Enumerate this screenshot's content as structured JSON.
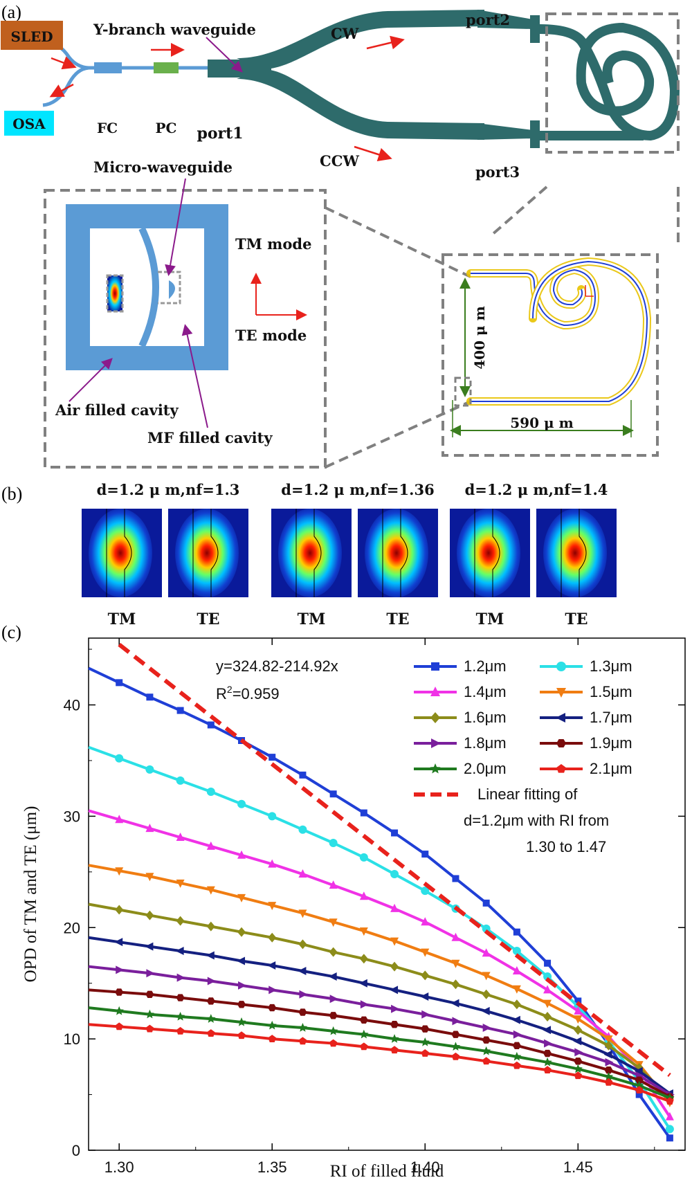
{
  "panel_labels": {
    "a": "(a)",
    "b": "(b)",
    "c": "(c)"
  },
  "schematic": {
    "sled": "SLED",
    "osa": "OSA",
    "fc": "FC",
    "pc": "PC",
    "port1": "port1",
    "port2": "port2",
    "port3": "port3",
    "y_branch": "Y-branch waveguide",
    "cw": "CW",
    "ccw": "CCW",
    "micro_waveguide": "Micro-waveguide",
    "tm_mode": "TM mode",
    "te_mode": "TE mode",
    "air_cavity": "Air filled cavity",
    "mf_cavity": "MF filled cavity",
    "dim_height": "400 μ m",
    "dim_width": "590 μ m",
    "colors": {
      "sled": "#c0601e",
      "osa": "#00e5ff",
      "fiber": "#5b9bd5",
      "fc": "#5b9bd5",
      "pc": "#6ab04c",
      "waveguide": "#2e6b6b",
      "arrow": "#e8221c",
      "annot": "#8b1a8b",
      "dashed": "#808080"
    }
  },
  "modes": {
    "groups": [
      {
        "title": "d=1.2 μ m,nf=1.3",
        "labels": [
          "TM",
          "TE"
        ]
      },
      {
        "title": "d=1.2 μ m,nf=1.36",
        "labels": [
          "TM",
          "TE"
        ]
      },
      {
        "title": "d=1.2 μ m,nf=1.4",
        "labels": [
          "TM",
          "TE"
        ]
      }
    ]
  },
  "chart_data": {
    "type": "line",
    "xlabel": "RI of filled fluid",
    "ylabel": "OPD of TM and TE (μm)",
    "xlim": [
      1.29,
      1.485
    ],
    "ylim": [
      0,
      46
    ],
    "xticks": [
      "1.30",
      "1.35",
      "1.40",
      "1.45"
    ],
    "yticks": [
      "0",
      "10",
      "20",
      "30",
      "40"
    ],
    "annotation": {
      "equation": "y=324.82-214.92x",
      "r2_prefix": "R",
      "r2_exp": "2",
      "r2_value": "=0.959"
    },
    "legend_position": "top-right",
    "x": [
      1.3,
      1.31,
      1.32,
      1.33,
      1.34,
      1.35,
      1.36,
      1.37,
      1.38,
      1.39,
      1.4,
      1.41,
      1.42,
      1.43,
      1.44,
      1.45,
      1.46,
      1.47,
      1.48
    ],
    "series": [
      {
        "name": "1.2μm",
        "color": "#1f3fd6",
        "marker": "square",
        "values": [
          42.0,
          40.7,
          39.5,
          38.2,
          36.8,
          35.3,
          33.7,
          32.0,
          30.3,
          28.5,
          26.6,
          24.4,
          22.2,
          19.6,
          16.8,
          13.4,
          9.5,
          5.0,
          1.1
        ]
      },
      {
        "name": "1.3μm",
        "color": "#2be0e6",
        "marker": "circle",
        "values": [
          35.2,
          34.2,
          33.2,
          32.2,
          31.1,
          30.0,
          28.8,
          27.6,
          26.3,
          24.8,
          23.3,
          21.7,
          19.9,
          17.9,
          15.6,
          12.9,
          9.8,
          6.2,
          1.9
        ]
      },
      {
        "name": "1.4μm",
        "color": "#f032e6",
        "marker": "triangle-up",
        "values": [
          29.7,
          28.9,
          28.1,
          27.3,
          26.5,
          25.7,
          24.8,
          23.8,
          22.8,
          21.7,
          20.5,
          19.1,
          17.7,
          16.1,
          14.4,
          12.5,
          10.2,
          7.2,
          3.0
        ]
      },
      {
        "name": "1.5μm",
        "color": "#f07d12",
        "marker": "triangle-down",
        "values": [
          25.1,
          24.6,
          24.0,
          23.4,
          22.7,
          22.0,
          21.3,
          20.5,
          19.7,
          18.8,
          17.8,
          16.8,
          15.7,
          14.5,
          13.2,
          11.8,
          10.0,
          7.7,
          4.3
        ]
      },
      {
        "name": "1.6μm",
        "color": "#8c8c1a",
        "marker": "diamond",
        "values": [
          21.6,
          21.1,
          20.6,
          20.1,
          19.6,
          19.1,
          18.5,
          17.8,
          17.2,
          16.5,
          15.7,
          14.9,
          14.0,
          13.1,
          12.0,
          10.8,
          9.4,
          7.4,
          4.7
        ]
      },
      {
        "name": "1.7μm",
        "color": "#142080",
        "marker": "triangle-left",
        "values": [
          18.7,
          18.3,
          17.9,
          17.5,
          17.0,
          16.6,
          16.1,
          15.6,
          15.0,
          14.4,
          13.8,
          13.2,
          12.5,
          11.7,
          10.8,
          9.8,
          8.6,
          7.1,
          5.1
        ]
      },
      {
        "name": "1.8μm",
        "color": "#7a1f9c",
        "marker": "triangle-right",
        "values": [
          16.2,
          15.9,
          15.5,
          15.2,
          14.8,
          14.4,
          14.0,
          13.6,
          13.1,
          12.7,
          12.2,
          11.6,
          11.0,
          10.4,
          9.6,
          8.8,
          7.9,
          6.7,
          5.0
        ]
      },
      {
        "name": "1.9μm",
        "color": "#7a0c0c",
        "marker": "hexagon",
        "values": [
          14.2,
          14.0,
          13.7,
          13.4,
          13.1,
          12.8,
          12.4,
          12.1,
          11.7,
          11.3,
          10.9,
          10.4,
          9.9,
          9.4,
          8.7,
          8.0,
          7.2,
          6.3,
          4.8
        ]
      },
      {
        "name": "2.0μm",
        "color": "#1f7a1f",
        "marker": "star",
        "values": [
          12.5,
          12.2,
          12.0,
          11.8,
          11.5,
          11.2,
          11.0,
          10.7,
          10.4,
          10.0,
          9.7,
          9.3,
          8.9,
          8.4,
          7.9,
          7.3,
          6.6,
          5.8,
          4.7
        ]
      },
      {
        "name": "2.1μm",
        "color": "#e8221c",
        "marker": "pentagon",
        "values": [
          11.1,
          10.9,
          10.7,
          10.5,
          10.3,
          10.0,
          9.8,
          9.6,
          9.3,
          9.0,
          8.7,
          8.4,
          8.0,
          7.6,
          7.2,
          6.7,
          6.1,
          5.4,
          4.4
        ]
      }
    ],
    "fit": {
      "label_lines": [
        "Linear fitting of",
        "d=1.2μm with RI from",
        "1.30 to 1.47"
      ],
      "color": "#e8221c",
      "intercept": 324.82,
      "slope": -214.92,
      "x_range": [
        1.3,
        1.48
      ]
    }
  }
}
